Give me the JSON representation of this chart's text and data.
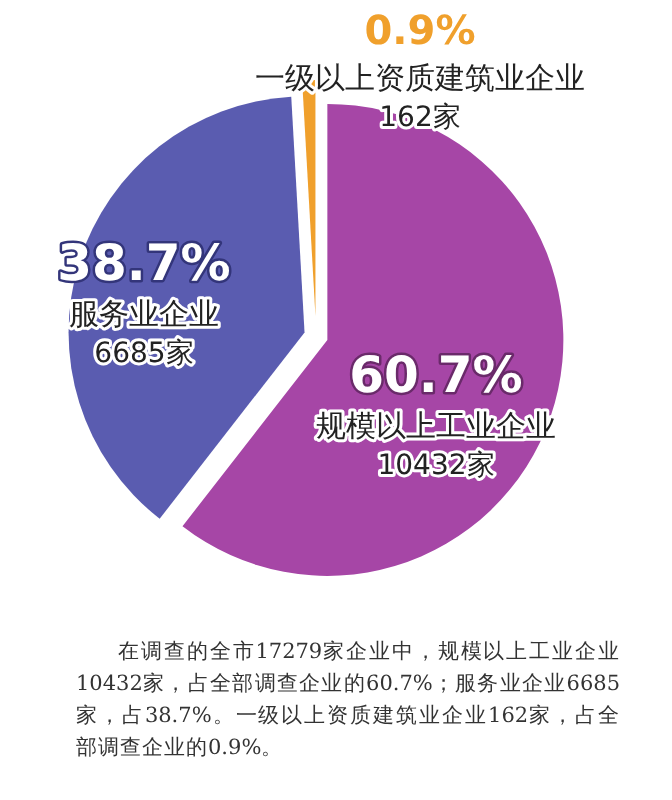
{
  "chart_data": {
    "type": "pie",
    "categories": [
      "规模以上工业企业\n10432家",
      "服务业企业\n6685家",
      "一级以上资质建筑业企业\n162家"
    ],
    "values": [
      60.7,
      38.7,
      0.9
    ],
    "value_labels": [
      "60.7%",
      "38.7%",
      "0.9%"
    ],
    "colors": [
      "#a646a6",
      "#5a5cb0",
      "#f0a02c"
    ],
    "annotations": [
      "在调查的全市17279家企业中，规模以上工业企业10432家，占全部调查企业的60.7%；服务业企业6685家，占38.7%。一级以上资质建筑业企业162家，占全部调查企业的0.9%。"
    ]
  }
}
